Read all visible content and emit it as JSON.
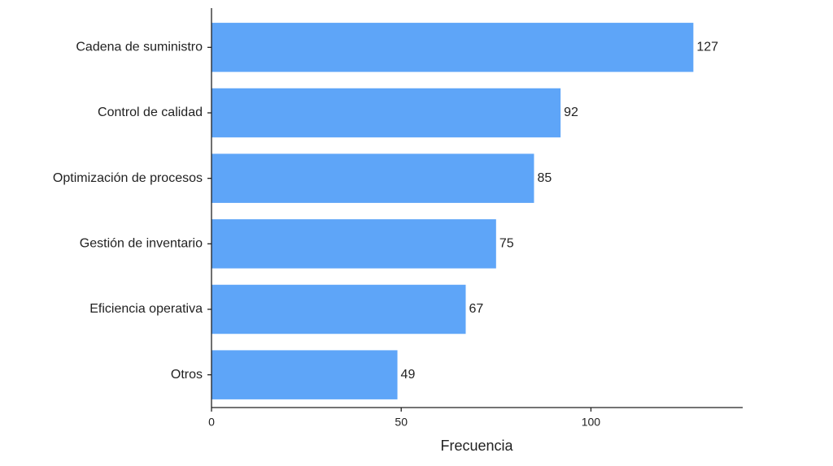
{
  "chart_data": {
    "type": "barh",
    "categories": [
      "Cadena de suministro",
      "Control de calidad",
      "Optimización de procesos",
      "Gestión de inventario",
      "Eficiencia operativa",
      "Otros"
    ],
    "values": [
      127,
      92,
      85,
      75,
      67,
      49
    ],
    "color": "#5ea5f8",
    "x_label": "Frecuencia",
    "xlim": [
      0,
      140
    ],
    "xticks": [
      0,
      50,
      100
    ],
    "grid": false
  }
}
